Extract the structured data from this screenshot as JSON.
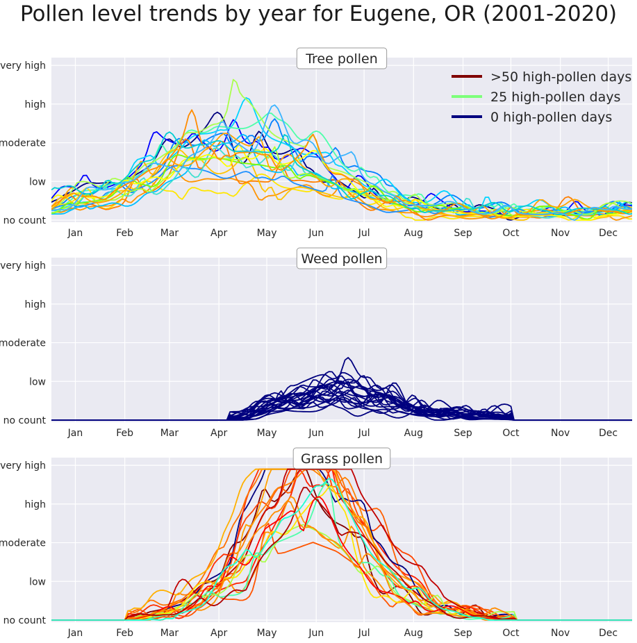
{
  "title": "Pollen level trends by year for Eugene, OR (2001-2020)",
  "chart_data": [
    {
      "type": "line",
      "title": "Tree pollen",
      "xlabel": "",
      "ylabel": "",
      "x_ticks": [
        "Jan",
        "Feb",
        "Mar",
        "Apr",
        "May",
        "Jun",
        "Jul",
        "Aug",
        "Sep",
        "Oct",
        "Nov",
        "Dec"
      ],
      "y_ticks": [
        "no count",
        "low",
        "moderate",
        "high",
        "very high"
      ],
      "ylim": [
        0,
        4.2
      ],
      "grid": true,
      "legend": {
        "placement": "top-right",
        "entries": [
          {
            "label": ">50 high-pollen days",
            "color": "#800000"
          },
          {
            "label": "25 high-pollen days",
            "color": "#7dff7a"
          },
          {
            "label": "0 high-pollen days",
            "color": "#00007f"
          }
        ]
      },
      "series_count": 20,
      "series_colors": [
        "#00007f",
        "#0000ff",
        "#0080ff",
        "#00d4ff",
        "#4dffaa",
        "#aaff4d",
        "#ffe600",
        "#ff9400",
        "#ff7f00",
        "#ffc400",
        "#1e90ff",
        "#00bfff",
        "#40e0d0",
        "#7cfc00",
        "#adff2f",
        "#ffff00",
        "#ffa500",
        "#ff8c00",
        "#00ced1",
        "#3cb4ff"
      ],
      "profile_points": [
        [
          1,
          0.2
        ],
        [
          15,
          0.55
        ],
        [
          40,
          0.6
        ],
        [
          70,
          1.2
        ],
        [
          100,
          1.75
        ],
        [
          130,
          1.6
        ],
        [
          160,
          1.3
        ],
        [
          190,
          0.8
        ],
        [
          220,
          0.35
        ],
        [
          260,
          0.18
        ],
        [
          300,
          0.12
        ],
        [
          340,
          0.15
        ],
        [
          365,
          0.25
        ]
      ]
    },
    {
      "type": "line",
      "title": "Weed pollen",
      "xlabel": "",
      "ylabel": "",
      "x_ticks": [
        "Jan",
        "Feb",
        "Mar",
        "Apr",
        "May",
        "Jun",
        "Jul",
        "Aug",
        "Sep",
        "Oct",
        "Nov",
        "Dec"
      ],
      "y_ticks": [
        "no count",
        "low",
        "moderate",
        "high",
        "very high"
      ],
      "ylim": [
        0,
        4.2
      ],
      "grid": true,
      "series_count": 20,
      "series_colors": [
        "#00007f"
      ],
      "profile_points": [
        [
          1,
          0
        ],
        [
          110,
          0
        ],
        [
          125,
          0.1
        ],
        [
          150,
          0.45
        ],
        [
          180,
          0.7
        ],
        [
          205,
          0.45
        ],
        [
          230,
          0.2
        ],
        [
          260,
          0.08
        ],
        [
          290,
          0.02
        ],
        [
          320,
          0
        ],
        [
          365,
          0
        ]
      ]
    },
    {
      "type": "line",
      "title": "Grass pollen",
      "xlabel": "",
      "ylabel": "",
      "x_ticks": [
        "Jan",
        "Feb",
        "Mar",
        "Apr",
        "May",
        "Jun",
        "Jul",
        "Aug",
        "Sep",
        "Oct",
        "Nov",
        "Dec"
      ],
      "y_ticks": [
        "no count",
        "low",
        "moderate",
        "high",
        "very high"
      ],
      "ylim": [
        0,
        4.2
      ],
      "grid": true,
      "series_count": 20,
      "series_colors": [
        "#800000",
        "#ff2000",
        "#ff4500",
        "#ff6000",
        "#ff8000",
        "#ffa000",
        "#00007f",
        "#ff3000",
        "#ff7000",
        "#ffb000",
        "#c00000",
        "#ff5500",
        "#ff9000",
        "#4dffaa",
        "#aaff4d",
        "#ffe600",
        "#ff0000",
        "#ff8c00",
        "#b00000",
        "#20ffd0"
      ],
      "profile_points": [
        [
          1,
          0
        ],
        [
          40,
          0
        ],
        [
          60,
          0.05
        ],
        [
          90,
          0.4
        ],
        [
          115,
          1.1
        ],
        [
          140,
          2.9
        ],
        [
          160,
          3.4
        ],
        [
          175,
          3.0
        ],
        [
          195,
          2.0
        ],
        [
          215,
          1.0
        ],
        [
          240,
          0.3
        ],
        [
          270,
          0.08
        ],
        [
          300,
          0
        ],
        [
          365,
          0
        ]
      ]
    }
  ]
}
